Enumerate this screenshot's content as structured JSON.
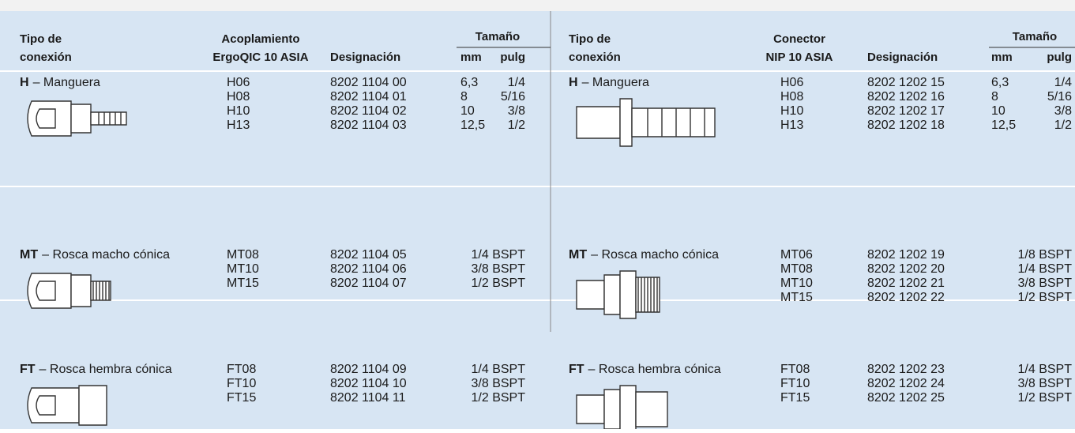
{
  "left": {
    "header": {
      "type": [
        "Tipo de",
        "conexión"
      ],
      "product": [
        "Acoplamiento",
        "ErgoQIC 10 ASIA"
      ],
      "designation": "Designación",
      "size": "Tamaño",
      "size_units": [
        "mm",
        "pulg"
      ]
    },
    "rows": [
      {
        "code": "H",
        "label": "– Manguera",
        "items": [
          [
            "H06",
            "8202 1104 00",
            "6,3",
            "1/4"
          ],
          [
            "H08",
            "8202 1104 01",
            "8",
            "5/16"
          ],
          [
            "H10",
            "8202 1104 02",
            "10",
            "3/8"
          ],
          [
            "H13",
            "8202 1104 03",
            "12,5",
            "1/2"
          ]
        ]
      },
      {
        "code": "MT",
        "label": "– Rosca macho cónica",
        "items": [
          [
            "MT08",
            "8202 1104 05",
            "1/4 BSPT"
          ],
          [
            "MT10",
            "8202 1104 06",
            "3/8 BSPT"
          ],
          [
            "MT15",
            "8202 1104 07",
            "1/2 BSPT"
          ]
        ]
      },
      {
        "code": "FT",
        "label": "– Rosca hembra cónica",
        "items": [
          [
            "FT08",
            "8202 1104 09",
            "1/4 BSPT"
          ],
          [
            "FT10",
            "8202 1104 10",
            "3/8 BSPT"
          ],
          [
            "FT15",
            "8202 1104 11",
            "1/2 BSPT"
          ]
        ]
      }
    ]
  },
  "right": {
    "header": {
      "type": [
        "Tipo de",
        "conexión"
      ],
      "product": [
        "Conector",
        "NIP 10 ASIA"
      ],
      "designation": "Designación",
      "size": "Tamaño",
      "size_units": [
        "mm",
        "pulg"
      ]
    },
    "rows": [
      {
        "code": "H",
        "label": "– Manguera",
        "items": [
          [
            "H06",
            "8202 1202 15",
            "6,3",
            "1/4"
          ],
          [
            "H08",
            "8202 1202 16",
            "8",
            "5/16"
          ],
          [
            "H10",
            "8202 1202 17",
            "10",
            "3/8"
          ],
          [
            "H13",
            "8202 1202 18",
            "12,5",
            "1/2"
          ]
        ]
      },
      {
        "code": "MT",
        "label": "– Rosca macho cónica",
        "items": [
          [
            "MT06",
            "8202 1202 19",
            "1/8 BSPT"
          ],
          [
            "MT08",
            "8202 1202 20",
            "1/4 BSPT"
          ],
          [
            "MT10",
            "8202 1202 21",
            "3/8 BSPT"
          ],
          [
            "MT15",
            "8202 1202 22",
            "1/2 BSPT"
          ]
        ]
      },
      {
        "code": "FT",
        "label": "– Rosca hembra cónica",
        "items": [
          [
            "FT08",
            "8202 1202 23",
            "1/4 BSPT"
          ],
          [
            "FT10",
            "8202 1202 24",
            "3/8 BSPT"
          ],
          [
            "FT15",
            "8202 1202 25",
            "1/2 BSPT"
          ]
        ]
      }
    ]
  }
}
